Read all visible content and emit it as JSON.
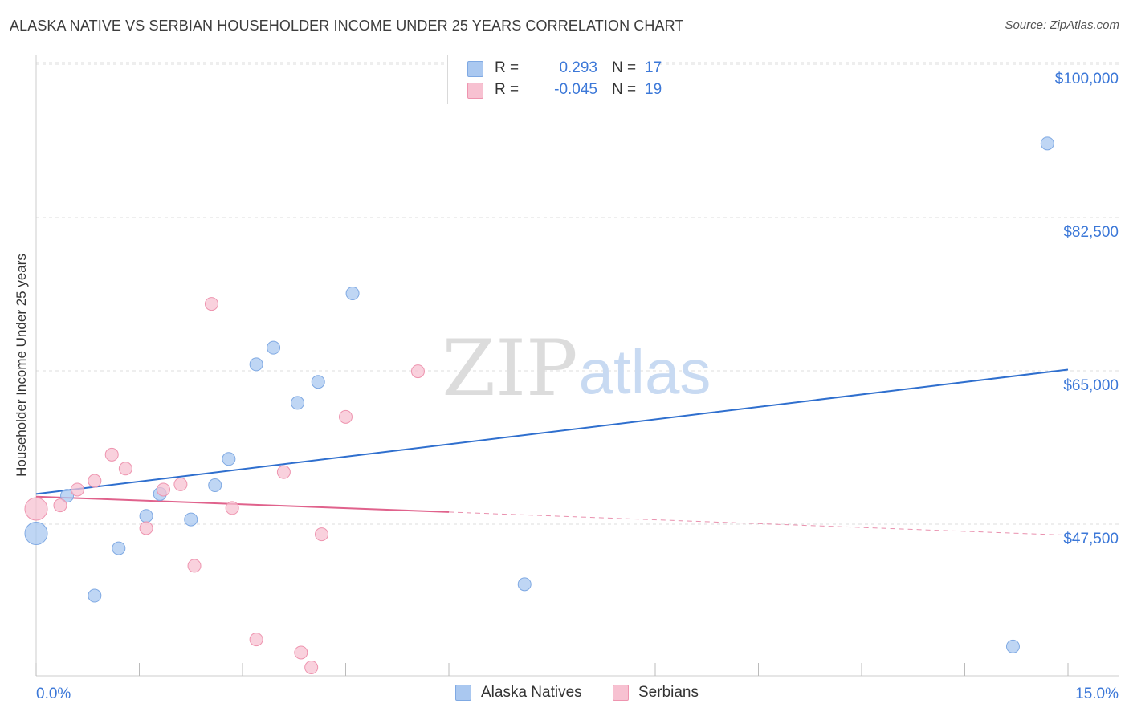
{
  "title": "ALASKA NATIVE VS SERBIAN HOUSEHOLDER INCOME UNDER 25 YEARS CORRELATION CHART",
  "source": "Source: ZipAtlas.com",
  "watermark": {
    "zip": "ZIP",
    "atlas": "atlas"
  },
  "stats": [
    {
      "r_label": "R =",
      "r_value": "0.293",
      "n_label": "N =",
      "n_value": "17",
      "color": "#aac8f0",
      "border": "#7fa9e3"
    },
    {
      "r_label": "R =",
      "r_value": "-0.045",
      "n_label": "N =",
      "n_value": "19",
      "color": "#f7c1d1",
      "border": "#ee94af"
    }
  ],
  "legend": [
    {
      "label": "Alaska Natives",
      "color": "#aac8f0",
      "border": "#7fa9e3"
    },
    {
      "label": "Serbians",
      "color": "#f7c1d1",
      "border": "#ee94af"
    }
  ],
  "chart_data": {
    "type": "scatter",
    "title": "ALASKA NATIVE VS SERBIAN HOUSEHOLDER INCOME UNDER 25 YEARS CORRELATION CHART",
    "xlabel": "",
    "ylabel": "Householder Income Under 25 years",
    "xlim": [
      0,
      15
    ],
    "ylim": [
      33000,
      102500
    ],
    "x_tick_labels": [
      "0.0%",
      "15.0%"
    ],
    "y_ticks": [
      47500,
      65000,
      82500,
      100000
    ],
    "y_tick_labels": [
      "$47,500",
      "$65,000",
      "$82,500",
      "$100,000"
    ],
    "grid": true,
    "series": [
      {
        "name": "Alaska Natives",
        "color": "#aac8f0",
        "stroke": "#7fa9e3",
        "line_color": "#2f6fce",
        "points": [
          {
            "x": 0.0,
            "y": 48000,
            "big": true
          },
          {
            "x": 0.45,
            "y": 52300
          },
          {
            "x": 0.85,
            "y": 40900
          },
          {
            "x": 1.2,
            "y": 46300
          },
          {
            "x": 1.6,
            "y": 50000
          },
          {
            "x": 1.8,
            "y": 52500
          },
          {
            "x": 2.25,
            "y": 49600
          },
          {
            "x": 2.6,
            "y": 53500
          },
          {
            "x": 2.8,
            "y": 56500
          },
          {
            "x": 3.2,
            "y": 67300
          },
          {
            "x": 3.45,
            "y": 69200
          },
          {
            "x": 3.8,
            "y": 62900
          },
          {
            "x": 4.1,
            "y": 65300
          },
          {
            "x": 4.6,
            "y": 75400
          },
          {
            "x": 7.1,
            "y": 42200
          },
          {
            "x": 14.2,
            "y": 35100
          },
          {
            "x": 14.7,
            "y": 92500
          }
        ],
        "trend": {
          "x0": 0.0,
          "y0": 52500,
          "x1": 15.0,
          "y1": 66700
        }
      },
      {
        "name": "Serbians",
        "color": "#f7c1d1",
        "stroke": "#ee94af",
        "line_color": "#e0628c",
        "points": [
          {
            "x": 0.0,
            "y": 50800,
            "big": true
          },
          {
            "x": 0.35,
            "y": 51200
          },
          {
            "x": 0.6,
            "y": 53000
          },
          {
            "x": 0.85,
            "y": 54000
          },
          {
            "x": 1.1,
            "y": 57000
          },
          {
            "x": 1.3,
            "y": 55400
          },
          {
            "x": 1.6,
            "y": 48600
          },
          {
            "x": 1.85,
            "y": 53000
          },
          {
            "x": 2.1,
            "y": 53600
          },
          {
            "x": 2.3,
            "y": 44300
          },
          {
            "x": 2.55,
            "y": 74200
          },
          {
            "x": 2.85,
            "y": 50900
          },
          {
            "x": 3.2,
            "y": 35900
          },
          {
            "x": 3.6,
            "y": 55000
          },
          {
            "x": 3.85,
            "y": 34400
          },
          {
            "x": 4.0,
            "y": 32700
          },
          {
            "x": 4.15,
            "y": 47900
          },
          {
            "x": 4.5,
            "y": 61300
          },
          {
            "x": 5.55,
            "y": 66500
          }
        ],
        "trend": {
          "x0": 0.0,
          "y0": 52200,
          "x1": 15.0,
          "y1": 47800,
          "solid_until_x": 6.0
        }
      }
    ]
  }
}
